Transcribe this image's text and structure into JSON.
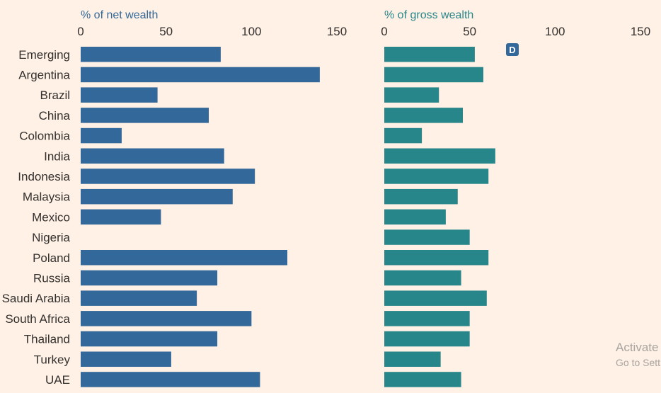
{
  "chart_data": [
    {
      "type": "bar",
      "orientation": "horizontal",
      "title": "% of net wealth",
      "xlim": [
        0,
        150
      ],
      "xticks": [
        0,
        50,
        100,
        150
      ],
      "color": "#33689a",
      "categories": [
        "Emerging",
        "Argentina",
        "Brazil",
        "China",
        "Colombia",
        "India",
        "Indonesia",
        "Malaysia",
        "Mexico",
        "Nigeria",
        "Poland",
        "Russia",
        "Saudi Arabia",
        "South Africa",
        "Thailand",
        "Turkey",
        "UAE"
      ],
      "values": [
        82,
        140,
        45,
        75,
        24,
        84,
        102,
        89,
        47,
        null,
        121,
        80,
        68,
        100,
        80,
        53,
        105
      ]
    },
    {
      "type": "bar",
      "orientation": "horizontal",
      "title": "% of gross wealth",
      "xlim": [
        0,
        150
      ],
      "xticks": [
        0,
        50,
        100,
        150
      ],
      "color": "#27868a",
      "categories": [
        "Emerging",
        "Argentina",
        "Brazil",
        "China",
        "Colombia",
        "India",
        "Indonesia",
        "Malaysia",
        "Mexico",
        "Nigeria",
        "Poland",
        "Russia",
        "Saudi Arabia",
        "South Africa",
        "Thailand",
        "Turkey",
        "UAE"
      ],
      "values": [
        53,
        58,
        32,
        46,
        22,
        65,
        61,
        43,
        36,
        50,
        61,
        45,
        60,
        50,
        50,
        33,
        45
      ]
    }
  ],
  "colors": {
    "title_net": "#33689a",
    "title_gross": "#27868a",
    "badge": "#33689a"
  },
  "badge": {
    "text": "D",
    "icon": "d-badge-icon"
  },
  "overlay": {
    "line1": "Activate",
    "line2": "Go to Sett"
  }
}
